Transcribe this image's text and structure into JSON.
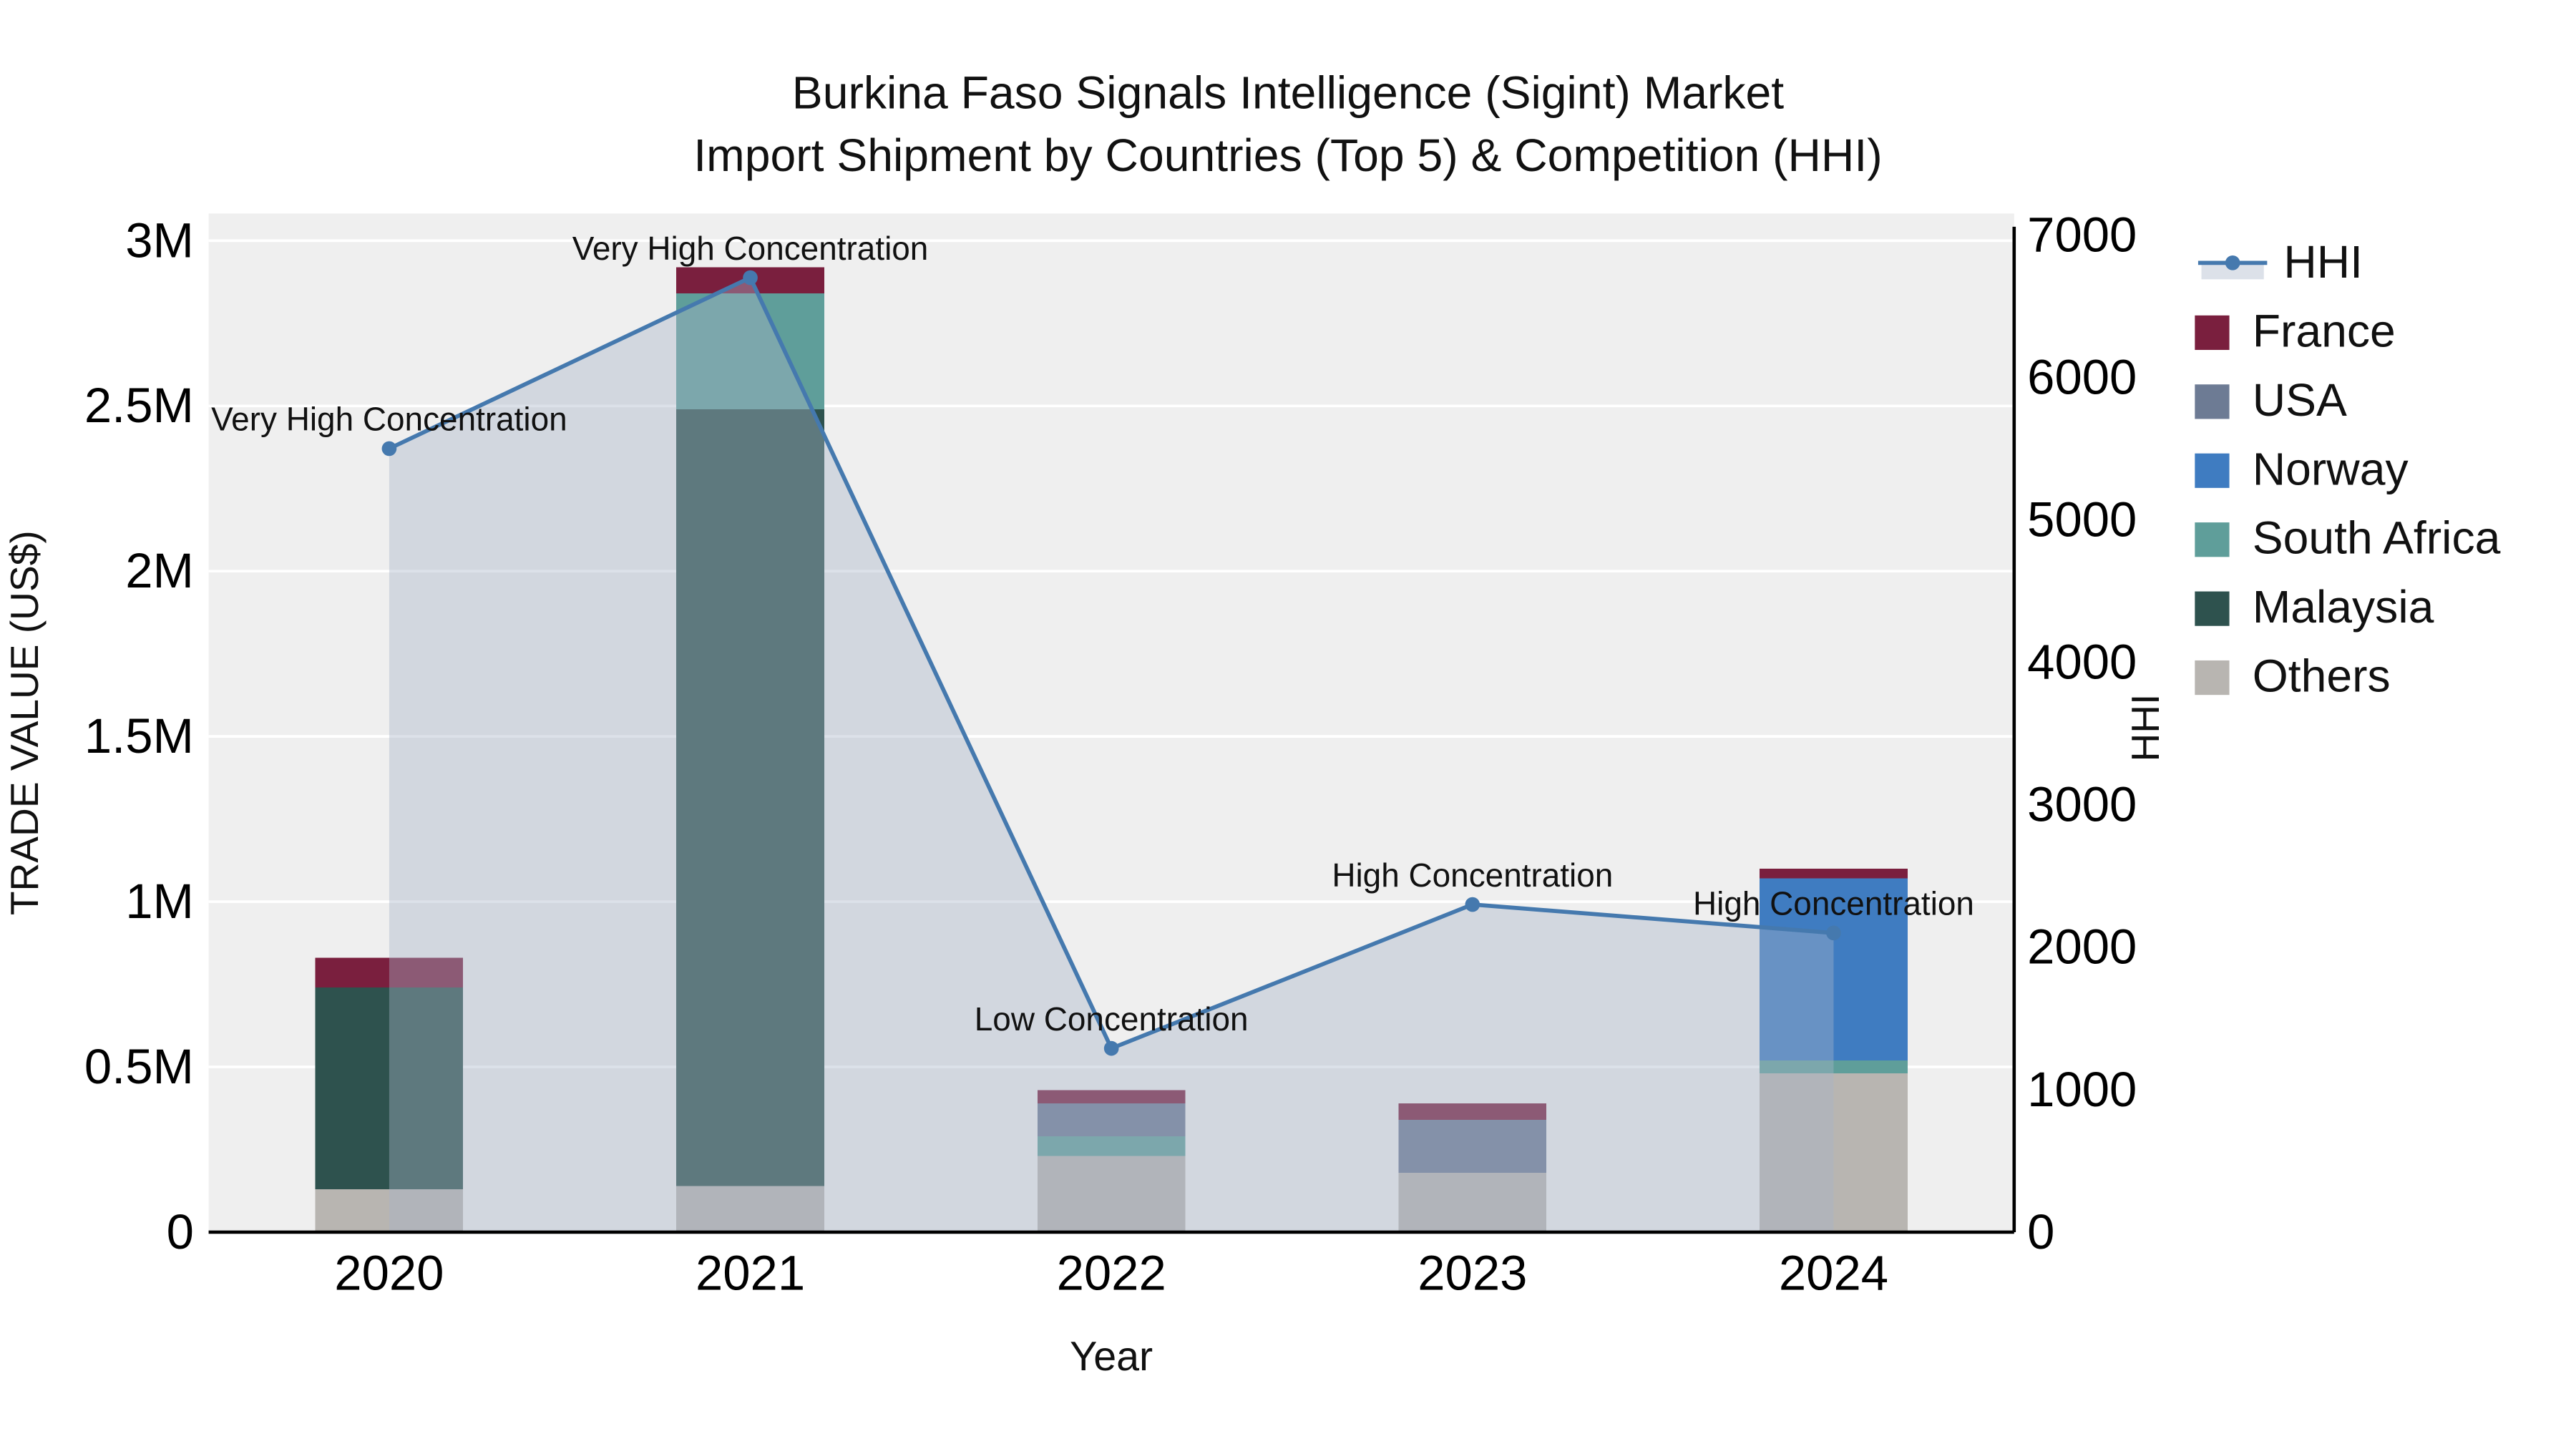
{
  "chart_data": {
    "type": "combo-stacked-bar-line",
    "title": "Burkina Faso Signals Intelligence (Sigint) Market",
    "subtitle": "Import Shipment by Countries (Top 5) & Competition (HHI)",
    "xlabel": "Year",
    "ylabel_left": "TRADE VALUE (US$)",
    "ylabel_right": "HHI",
    "categories": [
      "2020",
      "2021",
      "2022",
      "2023",
      "2024"
    ],
    "unit_left": "millions US$",
    "bar_series": [
      {
        "name": "Others",
        "color": "#b8b5b1",
        "values": [
          0.13,
          0.14,
          0.23,
          0.18,
          0.48
        ]
      },
      {
        "name": "Malaysia",
        "color": "#2e524e",
        "values": [
          0.61,
          2.35,
          0,
          0,
          0
        ]
      },
      {
        "name": "South Africa",
        "color": "#5f9e9a",
        "values": [
          0,
          0.35,
          0.06,
          0,
          0.04
        ]
      },
      {
        "name": "USA",
        "color": "#6d7b94",
        "values": [
          0,
          0,
          0.1,
          0.16,
          0
        ]
      },
      {
        "name": "Norway",
        "color": "#3f7cc1",
        "values": [
          0,
          0,
          0,
          0,
          0.55
        ]
      },
      {
        "name": "France",
        "color": "#7a1f3e",
        "values": [
          0.09,
          0.08,
          0.04,
          0.05,
          0.03
        ]
      }
    ],
    "line_series": {
      "name": "HHI",
      "color": "#4579ae",
      "area_color": "#a7b5c9",
      "area_opacity": 0.4,
      "values": [
        5500,
        6700,
        1290,
        2300,
        2100
      ]
    },
    "annotations": [
      "Very High Concentration",
      "Very High Concentration",
      "Low Concentration",
      "High Concentration",
      "High Concentration"
    ],
    "y_left": {
      "max": 3,
      "ticks": [
        0,
        0.5,
        1,
        1.5,
        2,
        2.5,
        3
      ],
      "tick_labels": [
        "0",
        "0.5M",
        "1M",
        "1.5M",
        "2M",
        "2.5M",
        "3M"
      ]
    },
    "y_right": {
      "max": 7000,
      "ticks": [
        0,
        1000,
        2000,
        3000,
        4000,
        5000,
        6000,
        7000
      ],
      "tick_labels": [
        "0",
        "1000",
        "2000",
        "3000",
        "4000",
        "5000",
        "6000",
        "7000"
      ]
    },
    "legend_order": [
      "HHI",
      "France",
      "USA",
      "Norway",
      "South Africa",
      "Malaysia",
      "Others"
    ],
    "plot_bg_color": "#efefef",
    "grid_color": "#ffffff",
    "axis_color": "#000000"
  }
}
